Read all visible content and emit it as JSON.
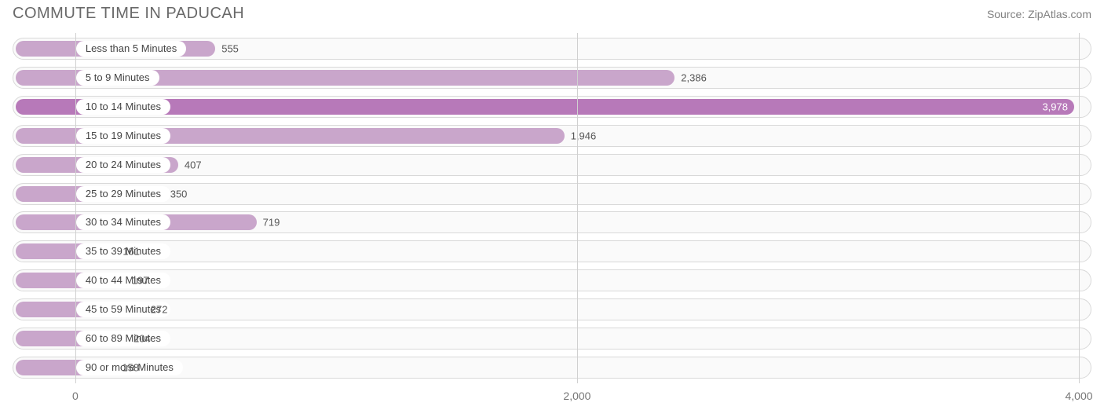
{
  "header": {
    "title": "COMMUTE TIME IN PADUCAH",
    "source": "Source: ZipAtlas.com"
  },
  "chart": {
    "type": "bar-horizontal",
    "background_color": "#ffffff",
    "track_border_color": "#d9d9d9",
    "track_background": "#fafafa",
    "grid_color": "#d0d0d0",
    "text_color": "#555555",
    "title_color": "#696969",
    "bar_color_normal": "#c9a6cb",
    "bar_color_max": "#b779b9",
    "title_fontsize": 20,
    "label_fontsize": 13,
    "tick_fontsize": 14,
    "xmin": -250,
    "xmax": 4050,
    "xticks": [
      {
        "value": 0,
        "label": "0"
      },
      {
        "value": 2000,
        "label": "2,000"
      },
      {
        "value": 4000,
        "label": "4,000"
      }
    ],
    "bars": [
      {
        "label": "Less than 5 Minutes",
        "value": 555,
        "display": "555"
      },
      {
        "label": "5 to 9 Minutes",
        "value": 2386,
        "display": "2,386"
      },
      {
        "label": "10 to 14 Minutes",
        "value": 3978,
        "display": "3,978"
      },
      {
        "label": "15 to 19 Minutes",
        "value": 1946,
        "display": "1,946"
      },
      {
        "label": "20 to 24 Minutes",
        "value": 407,
        "display": "407"
      },
      {
        "label": "25 to 29 Minutes",
        "value": 350,
        "display": "350"
      },
      {
        "label": "30 to 34 Minutes",
        "value": 719,
        "display": "719"
      },
      {
        "label": "35 to 39 Minutes",
        "value": 161,
        "display": "161"
      },
      {
        "label": "40 to 44 Minutes",
        "value": 197,
        "display": "197"
      },
      {
        "label": "45 to 59 Minutes",
        "value": 272,
        "display": "272"
      },
      {
        "label": "60 to 89 Minutes",
        "value": 204,
        "display": "204"
      },
      {
        "label": "90 or more Minutes",
        "value": 158,
        "display": "158"
      }
    ]
  }
}
